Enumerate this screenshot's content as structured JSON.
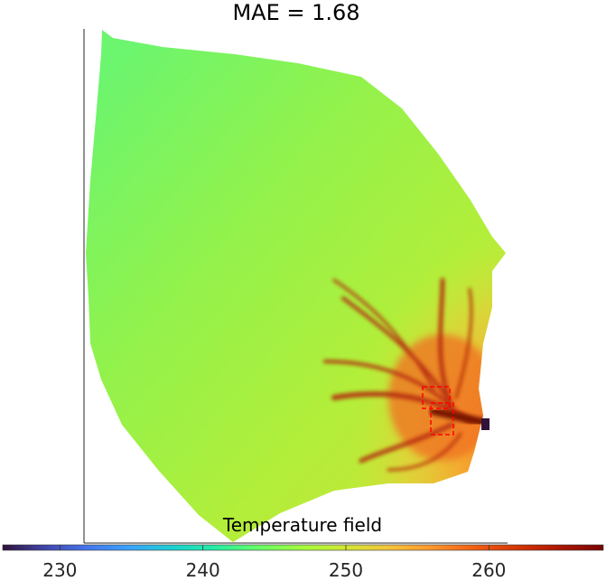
{
  "chart_data": {
    "type": "heatmap",
    "title": "MAE = 1.68",
    "colorbar": {
      "label": "Temperature field",
      "range": [
        226,
        268
      ],
      "ticks": [
        230,
        240,
        250,
        260
      ],
      "colormap": "turbo",
      "placement": "bottom"
    },
    "field_description_values": {
      "background_level": 245,
      "hot_region_level": 257,
      "peak_level": 266,
      "cold_spot_level": 228
    },
    "annotations": [
      {
        "kind": "dashed-box",
        "color": "#ff0000"
      }
    ]
  }
}
